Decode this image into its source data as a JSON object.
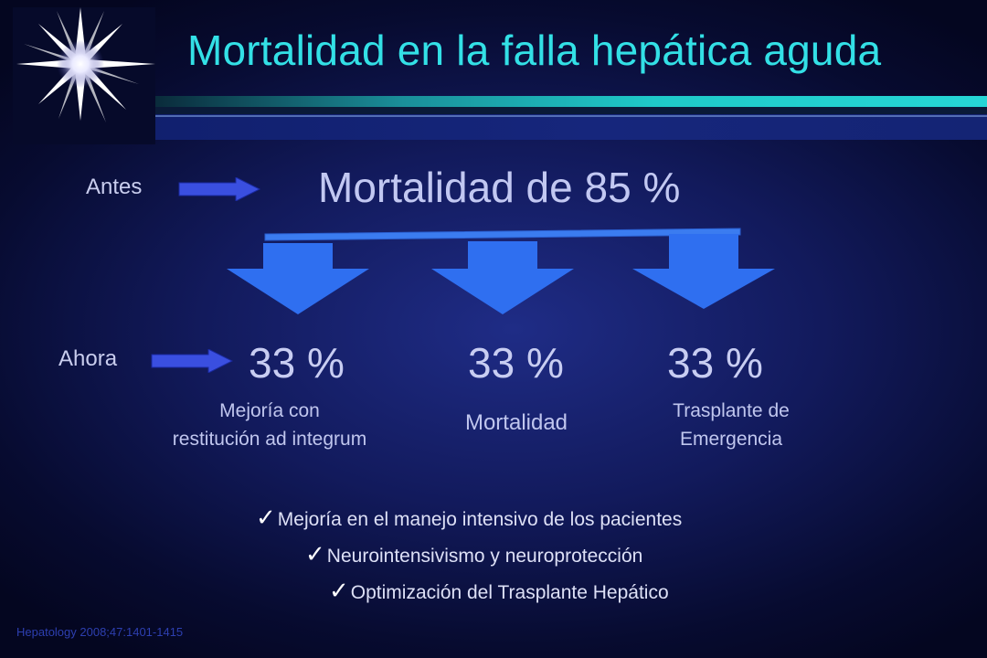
{
  "title": "Mortalidad en la falla hepática aguda",
  "before": {
    "label": "Antes",
    "statement": "Mortalidad de 85 %"
  },
  "now": {
    "label": "Ahora",
    "outcomes": [
      {
        "percent": "33 %",
        "description_lines": [
          "Mejoría con",
          "restitución ad integrum"
        ]
      },
      {
        "percent": "33 %",
        "description_lines": [
          "Mortalidad"
        ]
      },
      {
        "percent": "33 %",
        "description_lines": [
          "Trasplante de",
          "Emergencia"
        ]
      }
    ]
  },
  "bullets": [
    "Mejoría en el manejo intensivo de los pacientes",
    "Neurointensivismo y neuroprotección",
    "Optimización del Trasplante Hepático"
  ],
  "citation": "Hepatology 2008;47:1401-1415",
  "colors": {
    "title": "#33e0e6",
    "arrow_blue": "#2f6ff0",
    "background": "#121a5c",
    "text": "#c8cdf0",
    "citation": "#2d3fb0"
  },
  "icons": [
    "starburst-icon",
    "right-arrow-icon",
    "down-arrow-icon",
    "checkmark-icon"
  ]
}
